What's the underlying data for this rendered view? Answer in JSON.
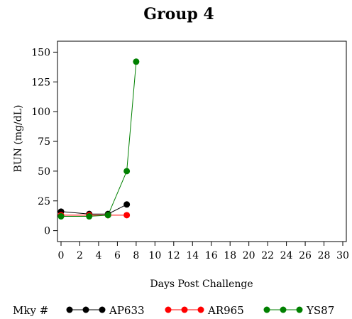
{
  "chart_data": {
    "type": "line",
    "title": "Group 4",
    "xlabel": "Days Post Challenge",
    "ylabel": "BUN (mg/dL)",
    "xlim": [
      0,
      30
    ],
    "ylim": [
      -5,
      155
    ],
    "xticks": [
      0,
      2,
      4,
      6,
      8,
      10,
      12,
      14,
      16,
      18,
      20,
      22,
      24,
      26,
      28,
      30
    ],
    "yticks": [
      0,
      25,
      50,
      75,
      100,
      125,
      150
    ],
    "grid": false,
    "legend": {
      "title": "Mky #",
      "position": "bottom"
    },
    "series": [
      {
        "name": "AP633",
        "color": "#000000",
        "x": [
          0,
          3,
          5,
          7
        ],
        "y": [
          16,
          14,
          14,
          22
        ]
      },
      {
        "name": "AR965",
        "color": "#ff0000",
        "x": [
          0,
          3,
          5,
          7
        ],
        "y": [
          13,
          13,
          13,
          13
        ]
      },
      {
        "name": "YS87",
        "color": "#008000",
        "x": [
          0,
          3,
          5,
          7,
          8
        ],
        "y": [
          12,
          12,
          13,
          50,
          142
        ]
      }
    ]
  }
}
